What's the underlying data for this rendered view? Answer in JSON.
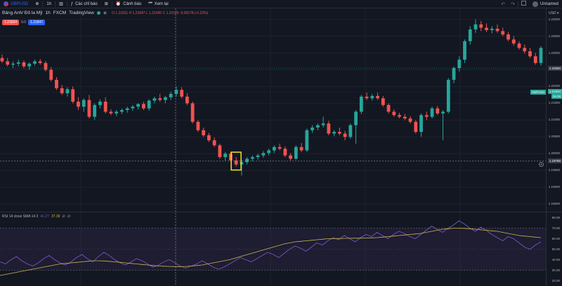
{
  "toolbar": {
    "symbol": "GBPUSD",
    "interval": "1h",
    "indicators_label": "Các chỉ báo",
    "alert_label": "Cảnh báo",
    "replay_label": "Xem lại",
    "layout_name": "Unnamed",
    "undo_icon": "undo-icon",
    "redo_icon": "redo-icon"
  },
  "legend": {
    "title": "Bảng Anh/ Đô la Mỹ",
    "interval": "1h",
    "broker": "FXCM",
    "source": "TradingView",
    "open": "O 1.21811",
    "high": "H 1.21847",
    "low": "L 1.21495",
    "close": "C 1.21526",
    "change": "-0.00278 (-0.23%)",
    "sell_price": "1.21834",
    "spread": "0.0",
    "buy_price": "1.21847"
  },
  "price_axis": {
    "currency": "USD",
    "ticks": [
      "1.24000",
      "1.23500",
      "1.23000",
      "1.22500",
      "1.22000",
      "1.21500",
      "1.21000",
      "1.20500",
      "1.20000",
      "1.19500",
      "1.19000",
      "1.18500"
    ],
    "current_price": "1.22550",
    "last_price": "1.21834",
    "countdown": "26:28",
    "crosshair_price": "1.19780",
    "symbol_tag": "GBPUSD"
  },
  "rsi": {
    "label": "RSI 14 close SMA 14 2",
    "rsi_value": "41.27",
    "sma_value": "37.39",
    "na1": "∅",
    "na2": "∅",
    "ticks": [
      "80.00",
      "70.00",
      "60.00",
      "50.00",
      "40.00",
      "30.00",
      "20.00"
    ],
    "series": [
      38,
      36,
      40,
      43,
      39,
      36,
      34,
      37,
      41,
      44,
      40,
      37,
      35,
      38,
      42,
      45,
      41,
      38,
      43,
      47,
      44,
      40,
      37,
      35,
      38,
      41,
      39,
      36,
      33,
      35,
      38,
      40,
      37,
      34,
      32,
      34,
      36,
      39,
      36,
      33,
      31,
      33,
      36,
      39,
      42,
      40,
      38,
      41,
      44,
      47,
      45,
      42,
      46,
      50,
      53,
      51,
      48,
      52,
      56,
      54,
      58,
      61,
      59,
      63,
      60,
      57,
      61,
      64,
      62,
      66,
      63,
      60,
      64,
      67,
      65,
      62,
      60,
      64,
      68,
      72,
      69,
      66,
      70,
      73,
      77,
      74,
      70,
      67,
      71,
      68,
      64,
      61,
      58,
      62,
      60,
      56,
      52,
      50,
      54,
      57
    ],
    "sma": [
      25,
      26,
      27,
      28,
      29,
      30,
      31,
      32,
      33,
      34,
      35,
      36,
      36.5,
      37,
      37.5,
      38,
      38.5,
      39,
      39,
      38.8,
      38.5,
      38,
      37.5,
      37,
      36.5,
      36,
      35.5,
      35,
      34.5,
      34,
      33.8,
      33.6,
      33.5,
      33.5,
      33.6,
      34,
      34.5,
      35,
      36,
      37,
      38,
      39,
      40,
      41.5,
      43,
      44.5,
      46,
      47.5,
      49,
      50.5,
      52,
      53.5,
      55,
      56,
      57,
      57.5,
      58,
      58.5,
      59,
      59.5,
      60,
      60,
      60.2,
      60.3,
      60.4,
      60.5,
      60.5,
      60.6,
      60.8,
      61,
      61.5,
      62,
      62.5,
      63,
      63.5,
      64,
      64.5,
      65,
      66,
      67,
      68,
      69,
      69.5,
      70,
      70,
      69.8,
      69.5,
      69,
      68.5,
      68,
      67.5,
      67,
      66,
      65,
      64,
      63,
      62.5,
      62,
      61.5,
      61
    ]
  },
  "chart_data": {
    "type": "candlestick",
    "colors": {
      "up": "#26a69a",
      "down": "#ef5350",
      "highlight": "#f5e51b"
    },
    "candles": [
      {
        "o": 1.2285,
        "h": 1.2295,
        "l": 1.227,
        "c": 1.2275
      },
      {
        "o": 1.2275,
        "h": 1.2285,
        "l": 1.226,
        "c": 1.2265
      },
      {
        "o": 1.2265,
        "h": 1.2275,
        "l": 1.2255,
        "c": 1.2268
      },
      {
        "o": 1.2268,
        "h": 1.228,
        "l": 1.226,
        "c": 1.2272
      },
      {
        "o": 1.2272,
        "h": 1.2278,
        "l": 1.2255,
        "c": 1.226
      },
      {
        "o": 1.226,
        "h": 1.2272,
        "l": 1.225,
        "c": 1.2268
      },
      {
        "o": 1.2268,
        "h": 1.228,
        "l": 1.2262,
        "c": 1.2275
      },
      {
        "o": 1.2275,
        "h": 1.2282,
        "l": 1.2265,
        "c": 1.227
      },
      {
        "o": 1.227,
        "h": 1.2276,
        "l": 1.2245,
        "c": 1.225
      },
      {
        "o": 1.225,
        "h": 1.2258,
        "l": 1.2215,
        "c": 1.222
      },
      {
        "o": 1.222,
        "h": 1.2228,
        "l": 1.219,
        "c": 1.2195
      },
      {
        "o": 1.2195,
        "h": 1.2205,
        "l": 1.2175,
        "c": 1.218
      },
      {
        "o": 1.218,
        "h": 1.2198,
        "l": 1.217,
        "c": 1.2192
      },
      {
        "o": 1.2192,
        "h": 1.22,
        "l": 1.215,
        "c": 1.2155
      },
      {
        "o": 1.2155,
        "h": 1.2168,
        "l": 1.213,
        "c": 1.214
      },
      {
        "o": 1.214,
        "h": 1.2165,
        "l": 1.2125,
        "c": 1.216
      },
      {
        "o": 1.216,
        "h": 1.2175,
        "l": 1.2105,
        "c": 1.211
      },
      {
        "o": 1.211,
        "h": 1.215,
        "l": 1.21,
        "c": 1.2145
      },
      {
        "o": 1.2145,
        "h": 1.2162,
        "l": 1.2135,
        "c": 1.2155
      },
      {
        "o": 1.2155,
        "h": 1.2168,
        "l": 1.212,
        "c": 1.2125
      },
      {
        "o": 1.2125,
        "h": 1.2132,
        "l": 1.2115,
        "c": 1.212
      },
      {
        "o": 1.212,
        "h": 1.213,
        "l": 1.2112,
        "c": 1.2125
      },
      {
        "o": 1.2125,
        "h": 1.2135,
        "l": 1.2118,
        "c": 1.213
      },
      {
        "o": 1.213,
        "h": 1.214,
        "l": 1.2122,
        "c": 1.2135
      },
      {
        "o": 1.2135,
        "h": 1.2145,
        "l": 1.2128,
        "c": 1.214
      },
      {
        "o": 1.214,
        "h": 1.215,
        "l": 1.2132,
        "c": 1.2148
      },
      {
        "o": 1.2148,
        "h": 1.2155,
        "l": 1.213,
        "c": 1.2135
      },
      {
        "o": 1.2135,
        "h": 1.2162,
        "l": 1.2128,
        "c": 1.2158
      },
      {
        "o": 1.2158,
        "h": 1.217,
        "l": 1.215,
        "c": 1.2165
      },
      {
        "o": 1.2165,
        "h": 1.2178,
        "l": 1.2155,
        "c": 1.216
      },
      {
        "o": 1.216,
        "h": 1.2172,
        "l": 1.215,
        "c": 1.2168
      },
      {
        "o": 1.2168,
        "h": 1.2185,
        "l": 1.216,
        "c": 1.2178
      },
      {
        "o": 1.2178,
        "h": 1.22,
        "l": 1.217,
        "c": 1.219
      },
      {
        "o": 1.219,
        "h": 1.2198,
        "l": 1.2165,
        "c": 1.217
      },
      {
        "o": 1.217,
        "h": 1.218,
        "l": 1.2145,
        "c": 1.215
      },
      {
        "o": 1.215,
        "h": 1.2155,
        "l": 1.209,
        "c": 1.2095
      },
      {
        "o": 1.2095,
        "h": 1.21,
        "l": 1.2065,
        "c": 1.207
      },
      {
        "o": 1.207,
        "h": 1.2078,
        "l": 1.205,
        "c": 1.2055
      },
      {
        "o": 1.2055,
        "h": 1.2062,
        "l": 1.2035,
        "c": 1.204
      },
      {
        "o": 1.204,
        "h": 1.2048,
        "l": 1.202,
        "c": 1.2025
      },
      {
        "o": 1.2025,
        "h": 1.203,
        "l": 1.1985,
        "c": 1.199
      },
      {
        "o": 1.199,
        "h": 1.2005,
        "l": 1.198,
        "c": 1.2
      },
      {
        "o": 1.2,
        "h": 1.2005,
        "l": 1.1975,
        "c": 1.198
      },
      {
        "o": 1.198,
        "h": 1.199,
        "l": 1.1962,
        "c": 1.1968
      },
      {
        "o": 1.1968,
        "h": 1.198,
        "l": 1.1935,
        "c": 1.1975
      },
      {
        "o": 1.1975,
        "h": 1.199,
        "l": 1.1968,
        "c": 1.1985
      },
      {
        "o": 1.1985,
        "h": 1.1995,
        "l": 1.1978,
        "c": 1.199
      },
      {
        "o": 1.199,
        "h": 1.2,
        "l": 1.1982,
        "c": 1.1995
      },
      {
        "o": 1.1995,
        "h": 1.2008,
        "l": 1.1988,
        "c": 1.2002
      },
      {
        "o": 1.2002,
        "h": 1.2015,
        "l": 1.1995,
        "c": 1.201
      },
      {
        "o": 1.201,
        "h": 1.2025,
        "l": 1.2002,
        "c": 1.202
      },
      {
        "o": 1.202,
        "h": 1.203,
        "l": 1.201,
        "c": 1.2015
      },
      {
        "o": 1.2015,
        "h": 1.2022,
        "l": 1.199,
        "c": 1.1995
      },
      {
        "o": 1.1995,
        "h": 1.2002,
        "l": 1.198,
        "c": 1.1985
      },
      {
        "o": 1.1985,
        "h": 1.2025,
        "l": 1.1982,
        "c": 1.202
      },
      {
        "o": 1.202,
        "h": 1.2032,
        "l": 1.2005,
        "c": 1.201
      },
      {
        "o": 1.201,
        "h": 1.2075,
        "l": 1.2005,
        "c": 1.207
      },
      {
        "o": 1.207,
        "h": 1.2085,
        "l": 1.2062,
        "c": 1.2078
      },
      {
        "o": 1.2078,
        "h": 1.209,
        "l": 1.207,
        "c": 1.2085
      },
      {
        "o": 1.2085,
        "h": 1.211,
        "l": 1.2078,
        "c": 1.209
      },
      {
        "o": 1.209,
        "h": 1.2098,
        "l": 1.2055,
        "c": 1.206
      },
      {
        "o": 1.206,
        "h": 1.207,
        "l": 1.2052,
        "c": 1.2065
      },
      {
        "o": 1.2065,
        "h": 1.2078,
        "l": 1.2055,
        "c": 1.206
      },
      {
        "o": 1.206,
        "h": 1.2068,
        "l": 1.204,
        "c": 1.205
      },
      {
        "o": 1.205,
        "h": 1.209,
        "l": 1.2045,
        "c": 1.2085
      },
      {
        "o": 1.2085,
        "h": 1.213,
        "l": 1.203,
        "c": 1.2125
      },
      {
        "o": 1.2125,
        "h": 1.2175,
        "l": 1.2118,
        "c": 1.217
      },
      {
        "o": 1.217,
        "h": 1.2182,
        "l": 1.216,
        "c": 1.2165
      },
      {
        "o": 1.2165,
        "h": 1.2178,
        "l": 1.2158,
        "c": 1.2172
      },
      {
        "o": 1.2172,
        "h": 1.2182,
        "l": 1.216,
        "c": 1.2165
      },
      {
        "o": 1.2165,
        "h": 1.2172,
        "l": 1.214,
        "c": 1.2145
      },
      {
        "o": 1.2145,
        "h": 1.215,
        "l": 1.212,
        "c": 1.2125
      },
      {
        "o": 1.2125,
        "h": 1.2132,
        "l": 1.211,
        "c": 1.2115
      },
      {
        "o": 1.2115,
        "h": 1.2122,
        "l": 1.2105,
        "c": 1.211
      },
      {
        "o": 1.211,
        "h": 1.2118,
        "l": 1.21,
        "c": 1.2105
      },
      {
        "o": 1.2105,
        "h": 1.2112,
        "l": 1.209,
        "c": 1.2095
      },
      {
        "o": 1.2095,
        "h": 1.21,
        "l": 1.206,
        "c": 1.2065
      },
      {
        "o": 1.2065,
        "h": 1.212,
        "l": 1.205,
        "c": 1.2115
      },
      {
        "o": 1.2115,
        "h": 1.2125,
        "l": 1.21,
        "c": 1.211
      },
      {
        "o": 1.211,
        "h": 1.214,
        "l": 1.2105,
        "c": 1.2135
      },
      {
        "o": 1.2135,
        "h": 1.2142,
        "l": 1.2115,
        "c": 1.212
      },
      {
        "o": 1.212,
        "h": 1.213,
        "l": 1.204,
        "c": 1.2125
      },
      {
        "o": 1.2125,
        "h": 1.2225,
        "l": 1.212,
        "c": 1.222
      },
      {
        "o": 1.222,
        "h": 1.226,
        "l": 1.221,
        "c": 1.2255
      },
      {
        "o": 1.2255,
        "h": 1.229,
        "l": 1.2245,
        "c": 1.228
      },
      {
        "o": 1.228,
        "h": 1.234,
        "l": 1.227,
        "c": 1.2335
      },
      {
        "o": 1.2335,
        "h": 1.238,
        "l": 1.2325,
        "c": 1.237
      },
      {
        "o": 1.237,
        "h": 1.24,
        "l": 1.236,
        "c": 1.2385
      },
      {
        "o": 1.2385,
        "h": 1.2395,
        "l": 1.2365,
        "c": 1.2375
      },
      {
        "o": 1.2375,
        "h": 1.2388,
        "l": 1.2362,
        "c": 1.2368
      },
      {
        "o": 1.2368,
        "h": 1.238,
        "l": 1.2358,
        "c": 1.2372
      },
      {
        "o": 1.2372,
        "h": 1.2385,
        "l": 1.236,
        "c": 1.2365
      },
      {
        "o": 1.2365,
        "h": 1.2375,
        "l": 1.235,
        "c": 1.2355
      },
      {
        "o": 1.2355,
        "h": 1.2362,
        "l": 1.2335,
        "c": 1.234
      },
      {
        "o": 1.234,
        "h": 1.235,
        "l": 1.2322,
        "c": 1.2328
      },
      {
        "o": 1.2328,
        "h": 1.2335,
        "l": 1.231,
        "c": 1.2315
      },
      {
        "o": 1.2315,
        "h": 1.2325,
        "l": 1.2298,
        "c": 1.2305
      },
      {
        "o": 1.2305,
        "h": 1.2315,
        "l": 1.2285,
        "c": 1.229
      },
      {
        "o": 1.229,
        "h": 1.23,
        "l": 1.2265,
        "c": 1.227
      },
      {
        "o": 1.227,
        "h": 1.232,
        "l": 1.2262,
        "c": 1.2315
      }
    ],
    "highlight_index": 43,
    "y_range": [
      1.184,
      1.242
    ]
  }
}
